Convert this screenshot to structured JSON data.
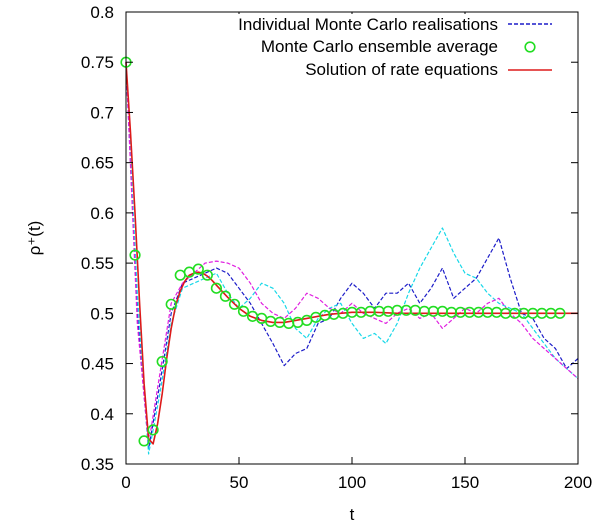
{
  "chart_data": {
    "type": "line",
    "xlabel": "t",
    "ylabel": "ρ⁺(t)",
    "xlim": [
      0,
      200
    ],
    "ylim": [
      0.35,
      0.8
    ],
    "x_ticks": [
      0,
      50,
      100,
      150,
      200
    ],
    "y_ticks": [
      0.35,
      0.4,
      0.45,
      0.5,
      0.55,
      0.6,
      0.65,
      0.7,
      0.75,
      0.8
    ],
    "x_tick_labels": [
      "0",
      "50",
      "100",
      "150",
      "200"
    ],
    "y_tick_labels": [
      "0.35",
      "0.4",
      "0.45",
      "0.5",
      "0.55",
      "0.6",
      "0.65",
      "0.7",
      "0.75",
      "0.8"
    ],
    "legend_position": "top-right",
    "grid": false,
    "legend": [
      {
        "label": "Individual Monte Carlo realisations",
        "style": "dashed",
        "color": "#1c1cc8"
      },
      {
        "label": "Monte Carlo ensemble average",
        "style": "circles",
        "color": "#22dd22"
      },
      {
        "label": "Solution of rate equations",
        "style": "solid",
        "color": "#dd1a1a"
      }
    ],
    "series": [
      {
        "role": "rate-equations",
        "color": "#dd1a1a",
        "x": [
          0,
          2,
          4,
          6,
          8,
          10,
          12,
          14,
          16,
          18,
          20,
          22,
          24,
          26,
          28,
          30,
          32,
          34,
          36,
          38,
          40,
          45,
          50,
          55,
          60,
          65,
          70,
          75,
          80,
          85,
          90,
          95,
          100,
          110,
          120,
          130,
          140,
          150,
          160,
          170,
          180,
          190,
          200
        ],
        "values": [
          0.75,
          0.68,
          0.6,
          0.51,
          0.43,
          0.375,
          0.37,
          0.39,
          0.42,
          0.455,
          0.485,
          0.508,
          0.522,
          0.532,
          0.538,
          0.54,
          0.541,
          0.54,
          0.537,
          0.533,
          0.528,
          0.516,
          0.505,
          0.497,
          0.493,
          0.491,
          0.491,
          0.493,
          0.495,
          0.497,
          0.499,
          0.5,
          0.501,
          0.501,
          0.5,
          0.5,
          0.5,
          0.5,
          0.5,
          0.5,
          0.5,
          0.5,
          0.5
        ]
      },
      {
        "role": "ensemble-average",
        "color": "#22dd22",
        "x": [
          0,
          4,
          8,
          12,
          16,
          20,
          24,
          28,
          32,
          36,
          40,
          44,
          48,
          52,
          56,
          60,
          64,
          68,
          72,
          76,
          80,
          84,
          88,
          92,
          96,
          100,
          104,
          108,
          112,
          116,
          120,
          124,
          128,
          132,
          136,
          140,
          144,
          148,
          152,
          156,
          160,
          164,
          168,
          172,
          176,
          180,
          184,
          188,
          192
        ],
        "values": [
          0.75,
          0.558,
          0.373,
          0.384,
          0.452,
          0.509,
          0.538,
          0.541,
          0.544,
          0.538,
          0.525,
          0.517,
          0.509,
          0.502,
          0.497,
          0.495,
          0.492,
          0.491,
          0.49,
          0.491,
          0.493,
          0.496,
          0.498,
          0.499,
          0.5,
          0.501,
          0.501,
          0.502,
          0.502,
          0.502,
          0.503,
          0.503,
          0.503,
          0.502,
          0.502,
          0.502,
          0.501,
          0.501,
          0.501,
          0.501,
          0.501,
          0.501,
          0.5,
          0.5,
          0.5,
          0.5,
          0.5,
          0.5,
          0.5
        ]
      },
      {
        "role": "realisation",
        "color": "#1c1cc8",
        "x": [
          0,
          5,
          10,
          15,
          20,
          25,
          30,
          35,
          40,
          45,
          50,
          55,
          60,
          65,
          70,
          75,
          80,
          85,
          90,
          95,
          100,
          105,
          110,
          115,
          120,
          125,
          130,
          135,
          140,
          145,
          150,
          155,
          160,
          165,
          170,
          175,
          180,
          185,
          190,
          195,
          200
        ],
        "values": [
          0.75,
          0.5,
          0.365,
          0.43,
          0.5,
          0.53,
          0.535,
          0.54,
          0.545,
          0.54,
          0.525,
          0.51,
          0.49,
          0.47,
          0.448,
          0.46,
          0.465,
          0.49,
          0.495,
          0.515,
          0.53,
          0.52,
          0.505,
          0.52,
          0.52,
          0.53,
          0.51,
          0.525,
          0.545,
          0.515,
          0.525,
          0.535,
          0.555,
          0.575,
          0.535,
          0.5,
          0.495,
          0.475,
          0.465,
          0.445,
          0.455
        ]
      },
      {
        "role": "realisation",
        "color": "#18d8e8",
        "x": [
          0,
          5,
          10,
          15,
          20,
          25,
          30,
          35,
          40,
          45,
          50,
          55,
          60,
          65,
          70,
          75,
          80,
          85,
          90,
          95,
          100,
          105,
          110,
          115,
          120,
          125,
          130,
          135,
          140,
          145,
          150,
          155,
          160,
          165,
          170,
          175,
          180,
          185,
          190,
          195,
          200
        ],
        "values": [
          0.75,
          0.52,
          0.36,
          0.42,
          0.49,
          0.525,
          0.53,
          0.535,
          0.54,
          0.52,
          0.505,
          0.515,
          0.53,
          0.525,
          0.51,
          0.485,
          0.475,
          0.495,
          0.505,
          0.51,
          0.49,
          0.475,
          0.48,
          0.47,
          0.49,
          0.52,
          0.545,
          0.565,
          0.585,
          0.56,
          0.54,
          0.535,
          0.52,
          0.51,
          0.505,
          0.5,
          0.485,
          0.47,
          0.455,
          0.445,
          0.435
        ]
      },
      {
        "role": "realisation",
        "color": "#e020e0",
        "x": [
          0,
          5,
          10,
          15,
          20,
          25,
          30,
          35,
          40,
          45,
          50,
          55,
          60,
          65,
          70,
          75,
          80,
          85,
          90,
          95,
          100,
          105,
          110,
          115,
          120,
          125,
          130,
          135,
          140,
          145,
          150,
          155,
          160,
          165,
          170,
          175,
          180,
          185,
          190,
          195,
          200
        ],
        "values": [
          0.75,
          0.49,
          0.37,
          0.44,
          0.51,
          0.53,
          0.54,
          0.55,
          0.552,
          0.55,
          0.545,
          0.53,
          0.51,
          0.5,
          0.495,
          0.505,
          0.52,
          0.515,
          0.505,
          0.5,
          0.51,
          0.5,
          0.495,
          0.49,
          0.5,
          0.505,
          0.495,
          0.5,
          0.485,
          0.495,
          0.505,
          0.5,
          0.51,
          0.515,
          0.5,
          0.49,
          0.475,
          0.465,
          0.455,
          0.445,
          0.435
        ]
      }
    ]
  }
}
